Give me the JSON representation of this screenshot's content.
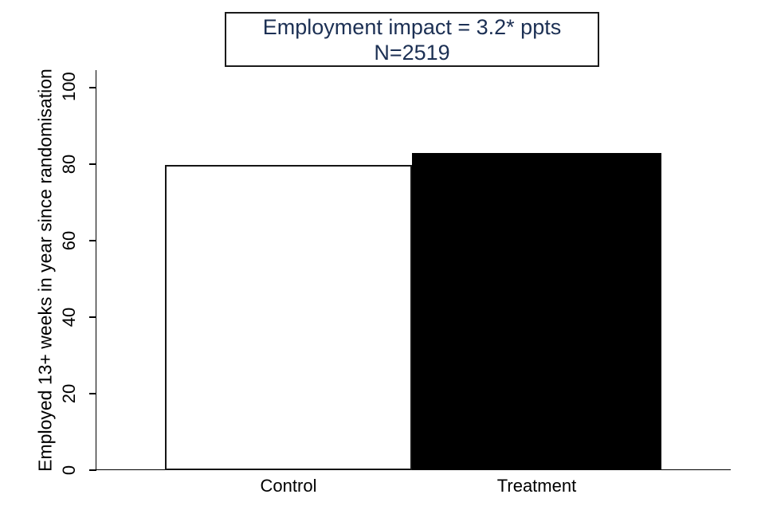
{
  "chart_data": {
    "type": "bar",
    "categories": [
      "Control",
      "Treatment"
    ],
    "values": [
      79.7,
      82.9
    ],
    "title": "Employment impact = 3.2* ppts",
    "subtitle": "N=2519",
    "xlabel": "",
    "ylabel": "Employed 13+ weeks in year since randomisation",
    "ylim": [
      0,
      100
    ],
    "yticks": [
      0,
      20,
      40,
      60,
      80,
      100
    ],
    "grid": false,
    "legend": "none",
    "bar_styles": [
      {
        "fill": "#ffffff",
        "border": "#141414"
      },
      {
        "fill": "#000000",
        "border": "#000000"
      }
    ],
    "colors": {
      "title_text": "#1c3054",
      "title_box_border": "#1a1a1a",
      "axis": "#000000",
      "background": "#ffffff"
    }
  }
}
